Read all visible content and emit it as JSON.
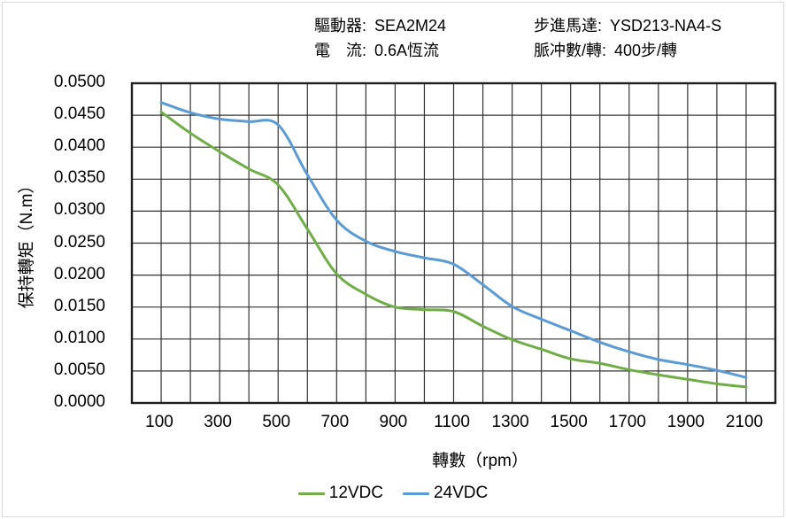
{
  "header": {
    "left": [
      {
        "label": "驅動器:",
        "value": "SEA2M24"
      },
      {
        "label": "電　流:",
        "value": "0.6A恆流"
      }
    ],
    "right": [
      {
        "label": "步進馬達:",
        "value": "YSD213-NA4-S"
      },
      {
        "label": "脈冲數/轉:",
        "value": "400步/轉"
      }
    ]
  },
  "colors": {
    "grid": "#333333",
    "plot_border": "#1f1f1f",
    "series_12vdc": "#70AD47",
    "series_24vdc": "#5B9BD5"
  },
  "chart_data": {
    "type": "line",
    "title": "",
    "xlabel": "轉數（rpm）",
    "ylabel": "保持轉矩（N.m）",
    "xlim": [
      0,
      2200
    ],
    "ylim": [
      0,
      0.05
    ],
    "grid": "on",
    "x_grid_step": 100,
    "y_grid_step": 0.005,
    "legend_position": "bottom",
    "x": [
      100,
      200,
      300,
      400,
      500,
      600,
      700,
      800,
      900,
      1000,
      1100,
      1200,
      1300,
      1400,
      1500,
      1600,
      1700,
      1800,
      1900,
      2000,
      2100
    ],
    "x_tick_values": [
      100,
      300,
      500,
      700,
      900,
      1100,
      1300,
      1500,
      1700,
      1900,
      2100
    ],
    "x_tick_labels": [
      "100",
      "300",
      "500",
      "700",
      "900",
      "1100",
      "1300",
      "1500",
      "1700",
      "1900",
      "2100"
    ],
    "y_tick_values": [
      0.05,
      0.045,
      0.04,
      0.035,
      0.03,
      0.025,
      0.02,
      0.015,
      0.01,
      0.005,
      0
    ],
    "y_tick_labels": [
      "0.0500",
      "0.0450",
      "0.0400",
      "0.0350",
      "0.0300",
      "0.0250",
      "0.0200",
      "0.0150",
      "0.0100",
      "0.0050",
      "0.0000"
    ],
    "series": [
      {
        "name": "12VDC",
        "color": "#70AD47",
        "values": [
          0.0455,
          0.0422,
          0.0393,
          0.0366,
          0.0341,
          0.0272,
          0.0202,
          0.017,
          0.015,
          0.0146,
          0.0143,
          0.012,
          0.0099,
          0.0084,
          0.0069,
          0.0062,
          0.0052,
          0.0044,
          0.0037,
          0.003,
          0.0025
        ]
      },
      {
        "name": "24VDC",
        "color": "#5B9BD5",
        "values": [
          0.047,
          0.0454,
          0.0444,
          0.044,
          0.0435,
          0.0357,
          0.0286,
          0.0253,
          0.0237,
          0.0227,
          0.0217,
          0.0185,
          0.0151,
          0.0131,
          0.0113,
          0.0095,
          0.008,
          0.0068,
          0.006,
          0.0051,
          0.004
        ]
      }
    ]
  }
}
